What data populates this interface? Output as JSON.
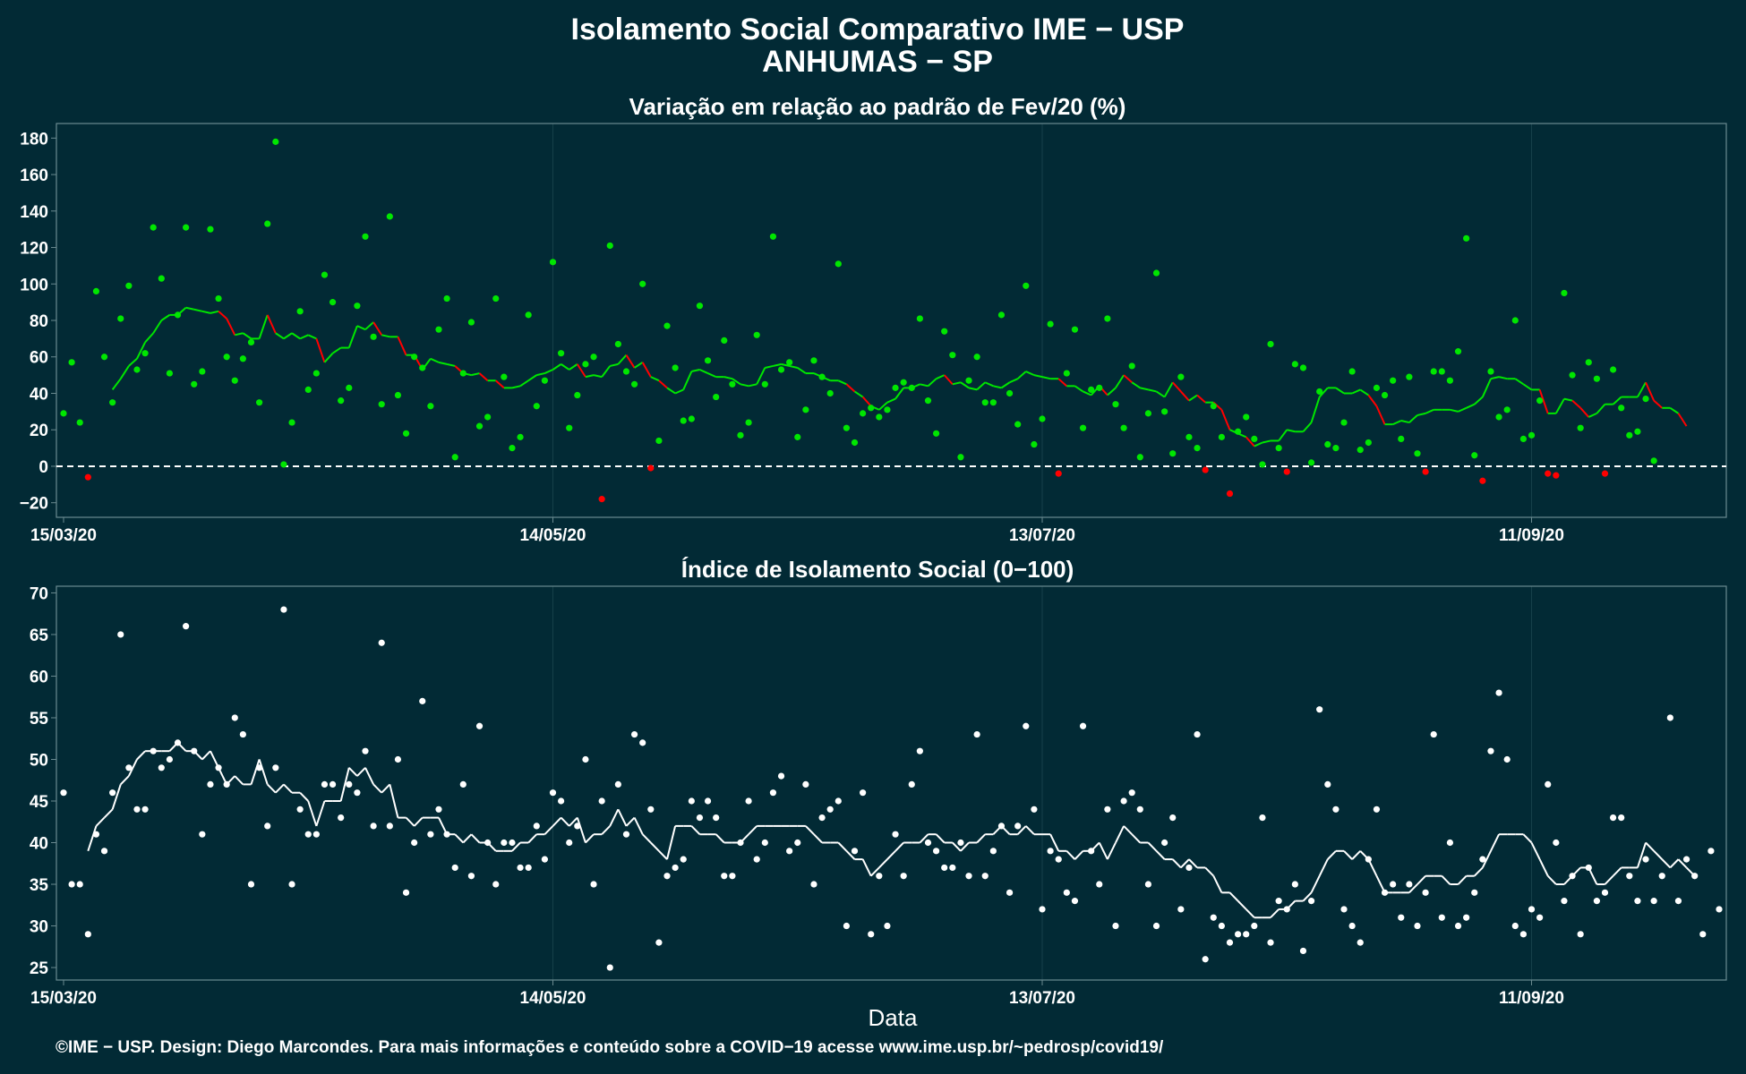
{
  "title_line1": "Isolamento Social Comparativo IME − USP",
  "title_line2": "ANHUMAS − SP",
  "footer": "©IME − USP. Design: Diego Marcondes. Para mais informações e conteúdo sobre a COVID−19 acesse www.ime.usp.br/~pedrosp/covid19/",
  "xlabel": "Data",
  "colors": {
    "background": "#022a35",
    "positive": "#00e600",
    "negative": "#ff0000",
    "index": "#ffffff",
    "panel_border": "#6b8a90",
    "grid": "#16414b"
  },
  "chart_data": [
    {
      "type": "scatter",
      "title": "Variação em relação ao padrão de Fev/20 (%)",
      "x_start": "15/03/20",
      "x_end": "2020-10-04",
      "x_ticks": [
        {
          "date": "2020-03-15",
          "label": "15/03/20"
        },
        {
          "date": "2020-05-14",
          "label": "14/05/20"
        },
        {
          "date": "2020-07-13",
          "label": "13/07/20"
        },
        {
          "date": "2020-09-11",
          "label": "11/09/20"
        }
      ],
      "ylim": [
        -28,
        188
      ],
      "y_ticks": [
        -20,
        0,
        20,
        40,
        60,
        80,
        100,
        120,
        140,
        160,
        180
      ],
      "reference_line": 0,
      "series": [
        {
          "kind": "points",
          "values": [
            29,
            57,
            24,
            -6,
            96,
            60,
            35,
            81,
            99,
            53,
            62,
            131,
            103,
            51,
            83,
            131,
            45,
            52,
            130,
            92,
            60,
            47,
            59,
            68,
            35,
            133,
            178,
            1,
            24,
            85,
            42,
            51,
            105,
            90,
            36,
            43,
            88,
            126,
            71,
            34,
            137,
            39,
            18,
            60,
            54,
            33,
            75,
            92,
            5,
            51,
            79,
            22,
            27,
            92,
            49,
            10,
            16,
            83,
            33,
            47,
            112,
            62,
            21,
            39,
            56,
            60,
            -18,
            121,
            67,
            52,
            45,
            100,
            -1,
            14,
            77,
            54,
            25,
            26,
            88,
            58,
            38,
            69,
            45,
            17,
            24,
            72,
            45,
            126,
            53,
            57,
            16,
            31,
            58,
            49,
            40,
            111,
            21,
            13,
            29,
            32,
            27,
            31,
            43,
            46,
            43,
            81,
            36,
            18,
            74,
            61,
            5,
            47,
            60,
            35,
            35,
            83,
            40,
            23,
            99,
            12,
            26,
            78,
            -4,
            51,
            75,
            21,
            42,
            43,
            81,
            34,
            21,
            55,
            5,
            29,
            106,
            30,
            7,
            49,
            16,
            10,
            -2,
            33,
            16,
            -15,
            19,
            27,
            15,
            1,
            67,
            10,
            -3,
            56,
            54,
            2,
            41,
            12,
            10,
            24,
            52,
            9,
            13,
            43,
            39,
            47,
            15,
            49,
            7,
            -3,
            52,
            52,
            47,
            63,
            125,
            6,
            -8,
            52,
            27,
            31,
            80,
            15,
            17,
            36,
            -4,
            -5,
            95,
            50,
            21,
            57,
            48,
            -4,
            53,
            32,
            17,
            19,
            37,
            3
          ]
        },
        {
          "kind": "moving_average",
          "values": [
            null,
            null,
            null,
            null,
            null,
            null,
            42,
            48,
            55,
            59,
            68,
            73,
            80,
            83,
            83,
            87,
            86,
            85,
            84,
            85,
            81,
            72,
            73,
            70,
            70,
            83,
            73,
            70,
            73,
            70,
            72,
            70,
            57,
            62,
            65,
            65,
            77,
            75,
            79,
            72,
            71,
            71,
            61,
            61,
            53,
            59,
            57,
            56,
            55,
            51,
            50,
            51,
            47,
            47,
            43,
            43,
            44,
            47,
            50,
            51,
            53,
            56,
            53,
            56,
            49,
            50,
            49,
            55,
            56,
            61,
            54,
            57,
            49,
            47,
            43,
            40,
            42,
            52,
            53,
            51,
            49,
            49,
            48,
            45,
            44,
            45,
            54,
            55,
            56,
            55,
            54,
            51,
            51,
            49,
            47,
            47,
            45,
            41,
            38,
            33,
            31,
            35,
            37,
            43,
            43,
            45,
            44,
            48,
            50,
            45,
            46,
            43,
            42,
            46,
            44,
            43,
            46,
            48,
            52,
            50,
            49,
            48,
            48,
            44,
            44,
            41,
            39,
            44,
            39,
            43,
            50,
            46,
            43,
            42,
            41,
            38,
            46,
            41,
            36,
            39,
            35,
            35,
            31,
            20,
            18,
            16,
            11,
            13,
            14,
            14,
            20,
            19,
            19,
            24,
            38,
            43,
            43,
            40,
            40,
            42,
            39,
            33,
            23,
            23,
            25,
            24,
            28,
            29,
            31,
            31,
            31,
            30,
            32,
            34,
            38,
            48,
            49,
            48,
            48,
            45,
            42,
            42,
            29,
            29,
            37,
            36,
            32,
            27,
            29,
            34,
            34,
            38,
            38,
            38,
            46,
            36,
            32,
            32,
            29,
            22
          ]
        }
      ]
    },
    {
      "type": "scatter",
      "title": "Índice de Isolamento Social (0−100)",
      "x_start": "15/03/20",
      "x_end": "2020-10-04",
      "x_ticks": [
        {
          "date": "2020-03-15",
          "label": "15/03/20"
        },
        {
          "date": "2020-05-14",
          "label": "14/05/20"
        },
        {
          "date": "2020-07-13",
          "label": "13/07/20"
        },
        {
          "date": "2020-09-11",
          "label": "11/09/20"
        }
      ],
      "ylim": [
        23.5,
        70.8
      ],
      "y_ticks": [
        25,
        30,
        35,
        40,
        45,
        50,
        55,
        60,
        65,
        70
      ],
      "series": [
        {
          "kind": "points",
          "values": [
            46,
            35,
            35,
            29,
            41,
            39,
            46,
            65,
            49,
            44,
            44,
            51,
            49,
            50,
            52,
            66,
            51,
            41,
            47,
            49,
            47,
            55,
            53,
            35,
            49,
            42,
            49,
            68,
            35,
            44,
            41,
            41,
            47,
            47,
            43,
            47,
            46,
            51,
            42,
            64,
            42,
            50,
            34,
            40,
            57,
            41,
            44,
            41,
            37,
            47,
            36,
            54,
            40,
            35,
            40,
            40,
            37,
            37,
            42,
            38,
            46,
            45,
            40,
            42,
            50,
            35,
            45,
            25,
            47,
            41,
            53,
            52,
            44,
            28,
            36,
            37,
            38,
            45,
            43,
            45,
            43,
            36,
            36,
            40,
            45,
            38,
            40,
            46,
            48,
            39,
            40,
            47,
            35,
            43,
            44,
            45,
            30,
            39,
            46,
            29,
            36,
            30,
            41,
            36,
            47,
            51,
            40,
            39,
            37,
            37,
            40,
            36,
            53,
            36,
            39,
            42,
            34,
            42,
            54,
            44,
            32,
            39,
            38,
            34,
            33,
            54,
            39,
            35,
            44,
            30,
            45,
            46,
            44,
            35,
            30,
            40,
            43,
            32,
            37,
            53,
            26,
            31,
            30,
            28,
            29,
            29,
            30,
            43,
            28,
            33,
            32,
            35,
            27,
            33,
            56,
            47,
            44,
            32,
            30,
            28,
            38,
            44,
            34,
            35,
            31,
            35,
            30,
            34,
            53,
            31,
            40,
            30,
            31,
            34,
            38,
            51,
            58,
            50,
            30,
            29,
            32,
            31,
            47,
            40,
            33,
            36,
            29,
            37,
            33,
            34,
            43,
            43,
            36,
            33,
            38,
            33,
            36,
            55,
            33,
            38,
            36,
            29,
            39,
            32
          ]
        },
        {
          "kind": "moving_average",
          "values": [
            null,
            null,
            null,
            39,
            42,
            43,
            44,
            47,
            48,
            50,
            51,
            51,
            51,
            51,
            52,
            51,
            51,
            50,
            51,
            49,
            47,
            48,
            47,
            47,
            50,
            47,
            46,
            47,
            46,
            46,
            45,
            42,
            45,
            45,
            45,
            49,
            48,
            49,
            47,
            46,
            47,
            43,
            43,
            42,
            43,
            43,
            43,
            41,
            41,
            40,
            41,
            40,
            40,
            39,
            39,
            39,
            40,
            40,
            41,
            41,
            42,
            43,
            42,
            43,
            40,
            41,
            41,
            42,
            44,
            42,
            43,
            41,
            40,
            39,
            38,
            42,
            42,
            42,
            41,
            41,
            41,
            40,
            40,
            40,
            41,
            42,
            42,
            42,
            42,
            42,
            42,
            42,
            41,
            40,
            40,
            40,
            39,
            38,
            38,
            36,
            37,
            38,
            39,
            40,
            40,
            40,
            41,
            41,
            40,
            40,
            39,
            40,
            40,
            41,
            41,
            42,
            41,
            41,
            42,
            41,
            41,
            41,
            39,
            39,
            38,
            39,
            39,
            40,
            38,
            40,
            42,
            41,
            40,
            40,
            39,
            38,
            38,
            37,
            38,
            37,
            37,
            36,
            34,
            34,
            33,
            32,
            31,
            31,
            31,
            32,
            32,
            33,
            33,
            34,
            36,
            38,
            39,
            39,
            38,
            39,
            38,
            36,
            34,
            34,
            34,
            34,
            35,
            36,
            36,
            36,
            35,
            35,
            36,
            36,
            37,
            39,
            41,
            41,
            41,
            41,
            40,
            38,
            36,
            35,
            35,
            36,
            37,
            37,
            35,
            35,
            36,
            37,
            37,
            37,
            40,
            39,
            38,
            37,
            38,
            37,
            36
          ]
        }
      ]
    }
  ]
}
